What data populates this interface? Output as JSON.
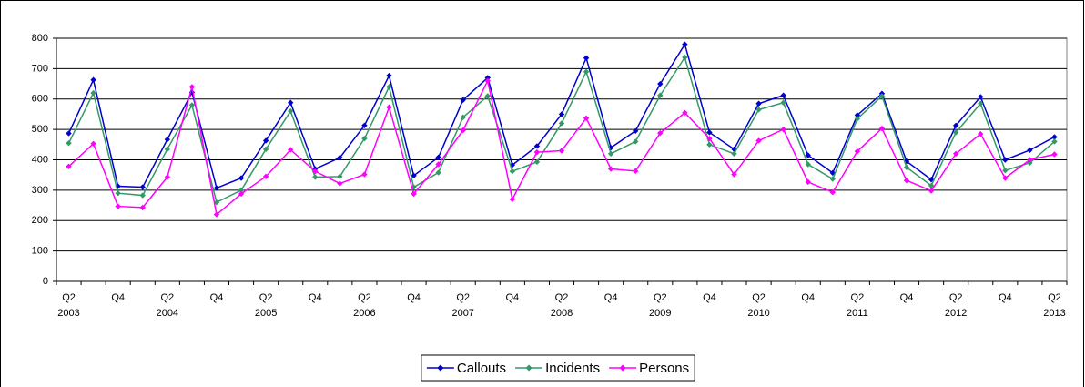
{
  "chart_data": {
    "type": "line",
    "categories": [
      "Q2",
      null,
      "Q4",
      null,
      "Q2",
      null,
      "Q4",
      null,
      "Q2",
      null,
      "Q4",
      null,
      "Q2",
      null,
      "Q4",
      null,
      "Q2",
      null,
      "Q4",
      null,
      "Q2",
      null,
      "Q4",
      null,
      "Q2",
      null,
      "Q4",
      null,
      "Q2",
      null,
      "Q4",
      null,
      "Q2",
      null,
      "Q4",
      null,
      "Q2",
      null,
      "Q4",
      null,
      "Q2"
    ],
    "category_years": [
      "2003",
      null,
      null,
      null,
      "2004",
      null,
      null,
      null,
      "2005",
      null,
      null,
      null,
      "2006",
      null,
      null,
      null,
      "2007",
      null,
      null,
      null,
      "2008",
      null,
      null,
      null,
      "2009",
      null,
      null,
      null,
      "2010",
      null,
      null,
      null,
      "2011",
      null,
      null,
      null,
      "2012",
      null,
      null,
      null,
      "2013"
    ],
    "series": [
      {
        "name": "Callouts",
        "color": "#0000cc",
        "values": [
          487,
          663,
          313,
          310,
          467,
          622,
          307,
          340,
          463,
          588,
          370,
          407,
          513,
          677,
          348,
          408,
          597,
          670,
          383,
          445,
          550,
          735,
          440,
          495,
          650,
          780,
          490,
          435,
          585,
          612,
          415,
          357,
          547,
          618,
          395,
          335,
          513,
          607,
          400,
          432,
          475
        ]
      },
      {
        "name": "Incidents",
        "color": "#339966",
        "values": [
          455,
          620,
          290,
          283,
          435,
          580,
          260,
          300,
          435,
          560,
          343,
          345,
          470,
          640,
          310,
          358,
          540,
          610,
          362,
          393,
          520,
          690,
          420,
          460,
          612,
          737,
          450,
          420,
          565,
          588,
          385,
          337,
          535,
          610,
          375,
          315,
          490,
          585,
          365,
          390,
          460
        ]
      },
      {
        "name": "Persons",
        "color": "#ff00ff",
        "values": [
          378,
          453,
          247,
          243,
          343,
          640,
          220,
          288,
          345,
          433,
          362,
          322,
          352,
          573,
          288,
          385,
          497,
          660,
          270,
          425,
          430,
          537,
          370,
          363,
          488,
          555,
          470,
          352,
          463,
          500,
          327,
          293,
          428,
          503,
          332,
          298,
          420,
          485,
          340,
          400,
          418
        ]
      }
    ],
    "ylim": [
      0,
      800
    ],
    "yticks": [
      0,
      100,
      200,
      300,
      400,
      500,
      600,
      700,
      800
    ],
    "grid": true,
    "legend": "bottom"
  }
}
